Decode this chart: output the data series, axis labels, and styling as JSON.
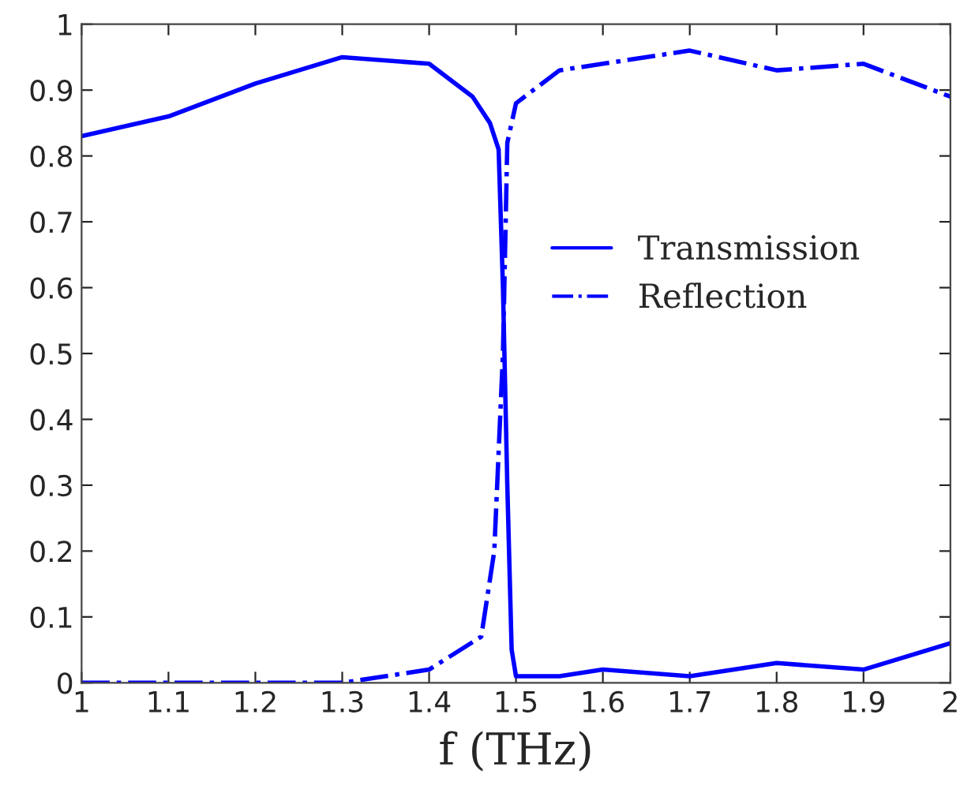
{
  "chart_data": {
    "type": "line",
    "xlabel": "f (THz)",
    "xlim": [
      1,
      2
    ],
    "xticks": [
      1,
      1.1,
      1.2,
      1.3,
      1.4,
      1.5,
      1.6,
      1.7,
      1.8,
      1.9,
      2
    ],
    "ylim": [
      0,
      1
    ],
    "yticks": [
      0,
      0.1,
      0.2,
      0.3,
      0.4,
      0.5,
      0.6,
      0.7,
      0.8,
      0.9,
      1
    ],
    "grid": false,
    "legend": "right",
    "marker": "none",
    "series": [
      {
        "name": "Transmission",
        "color": "#0000ff",
        "line_style": "solid",
        "x": [
          1,
          1.1,
          1.2,
          1.3,
          1.4,
          1.45,
          1.47,
          1.48,
          1.485,
          1.49,
          1.495,
          1.5,
          1.55,
          1.6,
          1.7,
          1.8,
          1.9,
          2
        ],
        "values": [
          0.83,
          0.86,
          0.91,
          0.95,
          0.94,
          0.89,
          0.85,
          0.81,
          0.6,
          0.3,
          0.05,
          0.01,
          0.01,
          0.02,
          0.01,
          0.03,
          0.02,
          0.06
        ]
      },
      {
        "name": "Reflection",
        "color": "#0000ff",
        "line_style": "dashdot",
        "x": [
          1,
          1.3,
          1.4,
          1.46,
          1.475,
          1.485,
          1.49,
          1.5,
          1.55,
          1.6,
          1.7,
          1.8,
          1.9,
          2
        ],
        "values": [
          0,
          0,
          0.02,
          0.07,
          0.2,
          0.5,
          0.82,
          0.88,
          0.93,
          0.94,
          0.96,
          0.93,
          0.94,
          0.89
        ]
      }
    ]
  }
}
